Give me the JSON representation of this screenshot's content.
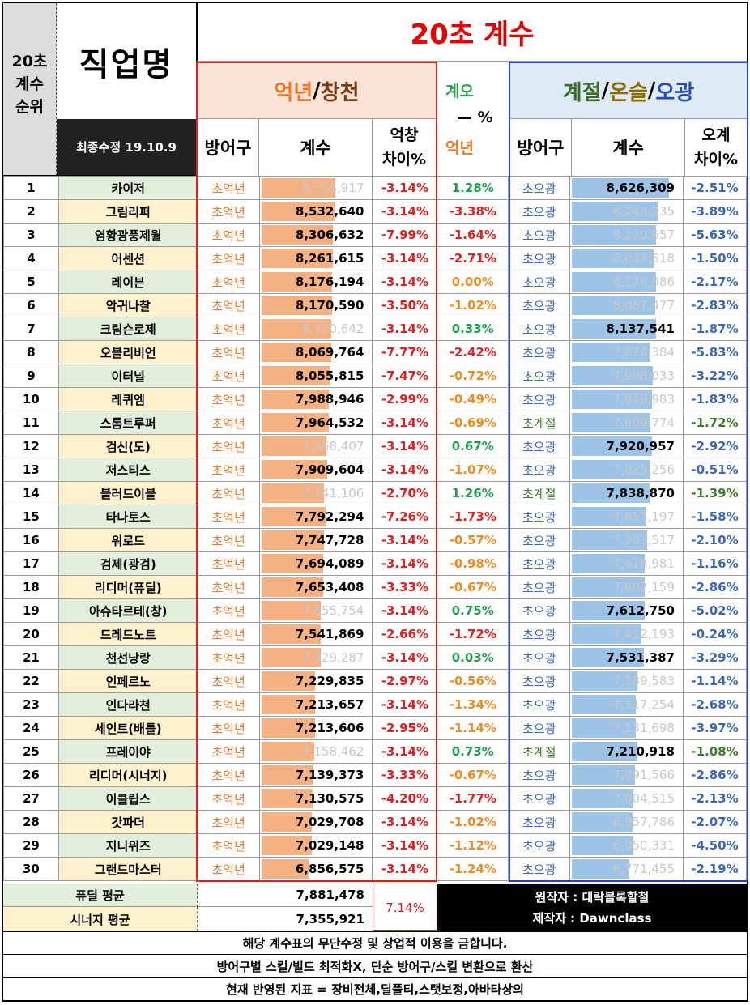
{
  "title": "20초 계수",
  "job_header": "직업명",
  "rank_header": [
    "20초",
    "계수",
    "순위"
  ],
  "updated": "최종수정 19.10.9",
  "group1": {
    "title_a": "억년",
    "slash": "/",
    "title_b": "창천"
  },
  "mid": {
    "top": "계오",
    "dash": "— %",
    "bottom": "억년"
  },
  "group2": {
    "title_a": "계절",
    "title_b": "온슬",
    "title_c": "오광"
  },
  "cols": {
    "armor": "방어구",
    "coef": "계수",
    "diff1_a": "억창",
    "diff1_b": "차이%",
    "diff2_a": "오계",
    "diff2_b": "차이%"
  },
  "colors": {
    "name_green": "#e2efda",
    "name_yellow": "#fff2cc",
    "bar_orange": "#f4b183",
    "bar_blue": "#9dc3e6",
    "header_orange": "#fbe4d5",
    "header_blue": "#deebf7"
  },
  "rows": [
    {
      "rank": "1",
      "name": "카이저",
      "arm1": "초억년",
      "v1": "8,516,917",
      "b1": 0.66,
      "d1": "-3.14%",
      "m": "1.28%",
      "arm2": "초오광",
      "v2": "8,626,309",
      "b2": 0.86,
      "d2": "-2.51%",
      "win": 2
    },
    {
      "rank": "2",
      "name": "그림리퍼",
      "arm1": "초억년",
      "v1": "8,532,640",
      "b1": 0.66,
      "d1": "-3.14%",
      "m": "-3.38%",
      "arm2": "초오광",
      "v2": "8,243,935",
      "b2": 0.76,
      "d2": "-3.89%",
      "win": 1
    },
    {
      "rank": "3",
      "name": "염황광풍제월",
      "arm1": "초억년",
      "v1": "8,306,632",
      "b1": 0.64,
      "d1": "-7.99%",
      "m": "-1.64%",
      "arm2": "초오광",
      "v2": "8,170,657",
      "b2": 0.75,
      "d2": "-5.63%",
      "win": 1
    },
    {
      "rank": "4",
      "name": "어센션",
      "arm1": "초억년",
      "v1": "8,261,615",
      "b1": 0.64,
      "d1": "-3.14%",
      "m": "-2.71%",
      "arm2": "초오광",
      "v2": "8,037,518",
      "b2": 0.73,
      "d2": "-1.50%",
      "win": 1
    },
    {
      "rank": "5",
      "name": "레이븐",
      "arm1": "초억년",
      "v1": "8,176,194",
      "b1": 0.63,
      "d1": "-3.14%",
      "m": "0.00%",
      "arm2": "초오광",
      "v2": "8,176,086",
      "b2": 0.75,
      "d2": "-2.17%",
      "win": 1
    },
    {
      "rank": "6",
      "name": "악귀나찰",
      "arm1": "초억년",
      "v1": "8,170,590",
      "b1": 0.63,
      "d1": "-3.50%",
      "m": "-1.02%",
      "arm2": "초오광",
      "v2": "8,087,477",
      "b2": 0.74,
      "d2": "-2.83%",
      "win": 1
    },
    {
      "rank": "7",
      "name": "크림슨로제",
      "arm1": "초억년",
      "v1": "8,110,642",
      "b1": 0.62,
      "d1": "-3.14%",
      "m": "0.33%",
      "arm2": "초오광",
      "v2": "8,137,541",
      "b2": 0.75,
      "d2": "-1.87%",
      "win": 2
    },
    {
      "rank": "8",
      "name": "오블리비언",
      "arm1": "초억년",
      "v1": "8,069,764",
      "b1": 0.62,
      "d1": "-7.77%",
      "m": "-2.42%",
      "arm2": "초오광",
      "v2": "7,874,384",
      "b2": 0.7,
      "d2": "-5.83%",
      "win": 1
    },
    {
      "rank": "9",
      "name": "이터널",
      "arm1": "초억년",
      "v1": "8,055,815",
      "b1": 0.61,
      "d1": "-7.47%",
      "m": "-0.72%",
      "arm2": "초오광",
      "v2": "7,998,033",
      "b2": 0.72,
      "d2": "-3.22%",
      "win": 1
    },
    {
      "rank": "10",
      "name": "레퀴엠",
      "arm1": "초억년",
      "v1": "7,988,946",
      "b1": 0.6,
      "d1": "-2.99%",
      "m": "-0.49%",
      "arm2": "초오광",
      "v2": "7,949,983",
      "b2": 0.71,
      "d2": "-1.83%",
      "win": 1
    },
    {
      "rank": "11",
      "name": "스톰트루퍼",
      "arm1": "초억년",
      "v1": "7,964,532",
      "b1": 0.6,
      "d1": "-3.14%",
      "m": "-0.69%",
      "arm2": "초계절",
      "v2": "7,909,774",
      "b2": 0.7,
      "d2": "-1.72%",
      "win": 1
    },
    {
      "rank": "12",
      "name": "검신(도)",
      "arm1": "초억년",
      "v1": "7,868,407",
      "b1": 0.58,
      "d1": "-3.14%",
      "m": "0.67%",
      "arm2": "초오광",
      "v2": "7,920,957",
      "b2": 0.71,
      "d2": "-2.92%",
      "win": 2
    },
    {
      "rank": "13",
      "name": "저스티스",
      "arm1": "초억년",
      "v1": "7,909,604",
      "b1": 0.59,
      "d1": "-3.14%",
      "m": "-1.07%",
      "arm2": "초오광",
      "v2": "7,825,256",
      "b2": 0.69,
      "d2": "-0.51%",
      "win": 1
    },
    {
      "rank": "14",
      "name": "블러드이블",
      "arm1": "초억년",
      "v1": "7,741,106",
      "b1": 0.56,
      "d1": "-2.70%",
      "m": "1.26%",
      "arm2": "초계절",
      "v2": "7,838,870",
      "b2": 0.69,
      "d2": "-1.39%",
      "win": 2
    },
    {
      "rank": "15",
      "name": "타나토스",
      "arm1": "초억년",
      "v1": "7,792,294",
      "b1": 0.57,
      "d1": "-7.26%",
      "m": "-1.73%",
      "arm2": "초오광",
      "v2": "7,657,197",
      "b2": 0.66,
      "d2": "-1.58%",
      "win": 1
    },
    {
      "rank": "16",
      "name": "워로드",
      "arm1": "초억년",
      "v1": "7,747,728",
      "b1": 0.56,
      "d1": "-3.14%",
      "m": "-0.57%",
      "arm2": "초오광",
      "v2": "7,703,517",
      "b2": 0.67,
      "d2": "-2.10%",
      "win": 1
    },
    {
      "rank": "17",
      "name": "검제(광검)",
      "arm1": "초억년",
      "v1": "7,694,089",
      "b1": 0.55,
      "d1": "-3.14%",
      "m": "-0.98%",
      "arm2": "초오광",
      "v2": "7,618,981",
      "b2": 0.65,
      "d2": "-1.16%",
      "win": 1
    },
    {
      "rank": "18",
      "name": "리디머(퓨딜)",
      "arm1": "초억년",
      "v1": "7,653,408",
      "b1": 0.55,
      "d1": "-3.33%",
      "m": "-0.67%",
      "arm2": "초오광",
      "v2": "7,602,159",
      "b2": 0.65,
      "d2": "-2.86%",
      "win": 1
    },
    {
      "rank": "19",
      "name": "아슈타르테(창)",
      "arm1": "초억년",
      "v1": "7,555,754",
      "b1": 0.53,
      "d1": "-3.14%",
      "m": "0.75%",
      "arm2": "초오광",
      "v2": "7,612,750",
      "b2": 0.65,
      "d2": "-5.02%",
      "win": 2
    },
    {
      "rank": "20",
      "name": "드레드노트",
      "arm1": "초억년",
      "v1": "7,541,869",
      "b1": 0.53,
      "d1": "-2.66%",
      "m": "-1.72%",
      "arm2": "초오광",
      "v2": "7,412,193",
      "b2": 0.62,
      "d2": "-0.24%",
      "win": 1
    },
    {
      "rank": "21",
      "name": "천선낭랑",
      "arm1": "초억년",
      "v1": "7,529,287",
      "b1": 0.53,
      "d1": "-3.14%",
      "m": "0.03%",
      "arm2": "초오광",
      "v2": "7,531,387",
      "b2": 0.64,
      "d2": "-3.29%",
      "win": 2
    },
    {
      "rank": "22",
      "name": "인페르노",
      "arm1": "초억년",
      "v1": "7,229,835",
      "b1": 0.48,
      "d1": "-2.97%",
      "m": "-0.56%",
      "arm2": "초오광",
      "v2": "7,189,583",
      "b2": 0.58,
      "d2": "-1.14%",
      "win": 1
    },
    {
      "rank": "23",
      "name": "인다라천",
      "arm1": "초억년",
      "v1": "7,213,657",
      "b1": 0.48,
      "d1": "-3.14%",
      "m": "-1.34%",
      "arm2": "초오광",
      "v2": "7,117,254",
      "b2": 0.57,
      "d2": "-2.68%",
      "win": 1
    },
    {
      "rank": "24",
      "name": "세인트(배틀)",
      "arm1": "초억년",
      "v1": "7,213,606",
      "b1": 0.48,
      "d1": "-2.95%",
      "m": "-1.14%",
      "arm2": "초오광",
      "v2": "7,131,698",
      "b2": 0.57,
      "d2": "-3.97%",
      "win": 1
    },
    {
      "rank": "25",
      "name": "프레이야",
      "arm1": "초억년",
      "v1": "7,158,462",
      "b1": 0.47,
      "d1": "-3.14%",
      "m": "0.73%",
      "arm2": "초계절",
      "v2": "7,210,918",
      "b2": 0.58,
      "d2": "-1.08%",
      "win": 2
    },
    {
      "rank": "26",
      "name": "리디머(시너지)",
      "arm1": "초억년",
      "v1": "7,139,373",
      "b1": 0.46,
      "d1": "-3.33%",
      "m": "-0.67%",
      "arm2": "초오광",
      "v2": "7,091,566",
      "b2": 0.56,
      "d2": "-2.86%",
      "win": 1
    },
    {
      "rank": "27",
      "name": "이클립스",
      "arm1": "초억년",
      "v1": "7,130,575",
      "b1": 0.46,
      "d1": "-4.20%",
      "m": "-1.77%",
      "arm2": "초오광",
      "v2": "7,004,515",
      "b2": 0.55,
      "d2": "-2.13%",
      "win": 1
    },
    {
      "rank": "28",
      "name": "갓파더",
      "arm1": "초억년",
      "v1": "7,029,708",
      "b1": 0.45,
      "d1": "-3.14%",
      "m": "-1.02%",
      "arm2": "초오광",
      "v2": "6,957,786",
      "b2": 0.54,
      "d2": "-2.07%",
      "win": 1
    },
    {
      "rank": "29",
      "name": "지니위즈",
      "arm1": "초억년",
      "v1": "7,029,148",
      "b1": 0.45,
      "d1": "-3.14%",
      "m": "-1.12%",
      "arm2": "초오광",
      "v2": "6,950,331",
      "b2": 0.54,
      "d2": "-4.50%",
      "win": 1
    },
    {
      "rank": "30",
      "name": "그랜드마스터",
      "arm1": "초억년",
      "v1": "6,856,575",
      "b1": 0.42,
      "d1": "-3.14%",
      "m": "-1.24%",
      "arm2": "초오광",
      "v2": "6,771,455",
      "b2": 0.51,
      "d2": "-2.19%",
      "win": 1
    }
  ],
  "averages": {
    "fudil_label": "퓨딜 평균",
    "fudil_value": "7,881,478",
    "synergy_label": "시너지 평균",
    "synergy_value": "7,355,921",
    "diff": "7.14%"
  },
  "credits": {
    "author": "원작자 : 대락블록할철",
    "maker": "제작자 : Dawnclass"
  },
  "footer": [
    "해당 계수표의 무단수정 및 상업적 이용을 금합니다.",
    "방어구별 스킬/빌드 최적화X, 단순 방어구/스킬 변환으로 환산",
    "현재 반영된 지표 = 장비전체,딜플티,스탯보정,아바타상의"
  ]
}
